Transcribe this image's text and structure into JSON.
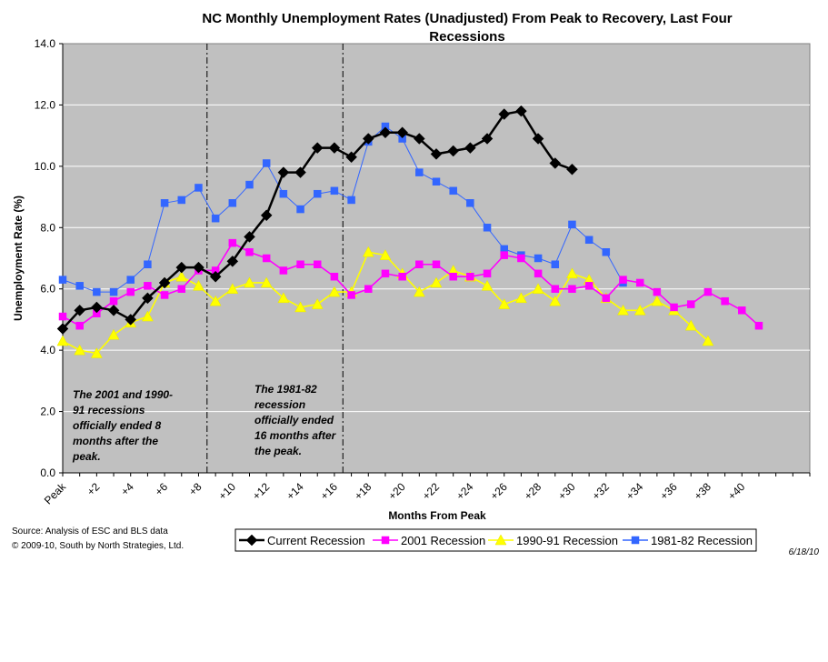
{
  "chart_data": {
    "type": "line",
    "title_lines": [
      "NC Monthly Unemployment Rates (Unadjusted) From Peak to Recovery, Last Four",
      "Recessions"
    ],
    "xlabel": "Months From Peak",
    "ylabel": "Unemployment Rate (%)",
    "ylim": [
      0,
      14
    ],
    "y_ticks": [
      "0.0",
      "2.0",
      "4.0",
      "6.0",
      "8.0",
      "10.0",
      "12.0",
      "14.0"
    ],
    "x_range": [
      0,
      44
    ],
    "x_tick_labels": [
      {
        "x": 0,
        "label": "Peak"
      },
      {
        "x": 2,
        "label": "+2"
      },
      {
        "x": 4,
        "label": "+4"
      },
      {
        "x": 6,
        "label": "+6"
      },
      {
        "x": 8,
        "label": "+8"
      },
      {
        "x": 10,
        "label": "+10"
      },
      {
        "x": 12,
        "label": "+12"
      },
      {
        "x": 14,
        "label": "+14"
      },
      {
        "x": 16,
        "label": "+16"
      },
      {
        "x": 18,
        "label": "+18"
      },
      {
        "x": 20,
        "label": "+20"
      },
      {
        "x": 22,
        "label": "+22"
      },
      {
        "x": 24,
        "label": "+24"
      },
      {
        "x": 26,
        "label": "+26"
      },
      {
        "x": 28,
        "label": "+28"
      },
      {
        "x": 30,
        "label": "+30"
      },
      {
        "x": 32,
        "label": "+32"
      },
      {
        "x": 34,
        "label": "+34"
      },
      {
        "x": 36,
        "label": "+36"
      },
      {
        "x": 38,
        "label": "+38"
      },
      {
        "x": 40,
        "label": "+40"
      }
    ],
    "grid": "horizontal",
    "plot_background": "#c0c0c0",
    "reference_lines": [
      8.5,
      16.5
    ],
    "annotations": [
      {
        "lines": [
          "The 2001 and 1990-",
          "91 recessions",
          "officially ended 8",
          "months after the",
          "peak."
        ]
      },
      {
        "lines": [
          "The 1981-82",
          "recession",
          "officially ended",
          "16 months after",
          "the peak."
        ]
      }
    ],
    "legend_position": "bottom",
    "series": [
      {
        "name": "Current Recession",
        "color": "#000000",
        "marker": "diamond",
        "values": [
          4.7,
          5.3,
          5.4,
          5.3,
          5.0,
          5.7,
          6.2,
          6.7,
          6.7,
          6.4,
          6.9,
          7.7,
          8.4,
          9.8,
          9.8,
          10.6,
          10.6,
          10.3,
          10.9,
          11.1,
          11.1,
          10.9,
          10.4,
          10.5,
          10.6,
          10.9,
          11.7,
          11.8,
          10.9,
          10.1,
          9.9
        ]
      },
      {
        "name": "2001 Recession",
        "color": "#ff00ff",
        "marker": "square",
        "values": [
          5.1,
          4.8,
          5.2,
          5.6,
          5.9,
          6.1,
          5.8,
          6.0,
          6.6,
          6.6,
          7.5,
          7.2,
          7.0,
          6.6,
          6.8,
          6.8,
          6.4,
          5.8,
          6.0,
          6.5,
          6.4,
          6.8,
          6.8,
          6.4,
          6.4,
          6.5,
          7.1,
          7.0,
          6.5,
          6.0,
          6.0,
          6.1,
          5.7,
          6.3,
          6.2,
          5.9,
          5.4,
          5.5,
          5.9,
          5.6,
          5.3,
          4.8
        ]
      },
      {
        "name": "1990-91 Recession",
        "color": "#ffff00",
        "marker": "triangle",
        "values": [
          4.3,
          4.0,
          3.9,
          4.5,
          4.9,
          5.1,
          6.2,
          6.4,
          6.1,
          5.6,
          6.0,
          6.2,
          6.2,
          5.7,
          5.4,
          5.5,
          5.9,
          5.9,
          7.2,
          7.1,
          6.5,
          5.9,
          6.2,
          6.6,
          6.4,
          6.1,
          5.5,
          5.7,
          6.0,
          5.6,
          6.5,
          6.3,
          5.7,
          5.3,
          5.3,
          5.6,
          5.3,
          4.8,
          4.3
        ]
      },
      {
        "name": "1981-82 Recession",
        "color": "#3366ff",
        "marker": "square",
        "values": [
          6.3,
          6.1,
          5.9,
          5.9,
          6.3,
          6.8,
          8.8,
          8.9,
          9.3,
          8.3,
          8.8,
          9.4,
          10.1,
          9.1,
          8.6,
          9.1,
          9.2,
          8.9,
          10.8,
          11.3,
          10.9,
          9.8,
          9.5,
          9.2,
          8.8,
          8.0,
          7.3,
          7.1,
          7.0,
          6.8,
          8.1,
          7.6,
          7.2,
          6.2
        ]
      }
    ]
  },
  "footer": {
    "source_line1": "Source:  Analysis of  ESC and BLS data",
    "source_line2": "© 2009-10, South by North Strategies, Ltd.",
    "date": "6/18/10"
  }
}
